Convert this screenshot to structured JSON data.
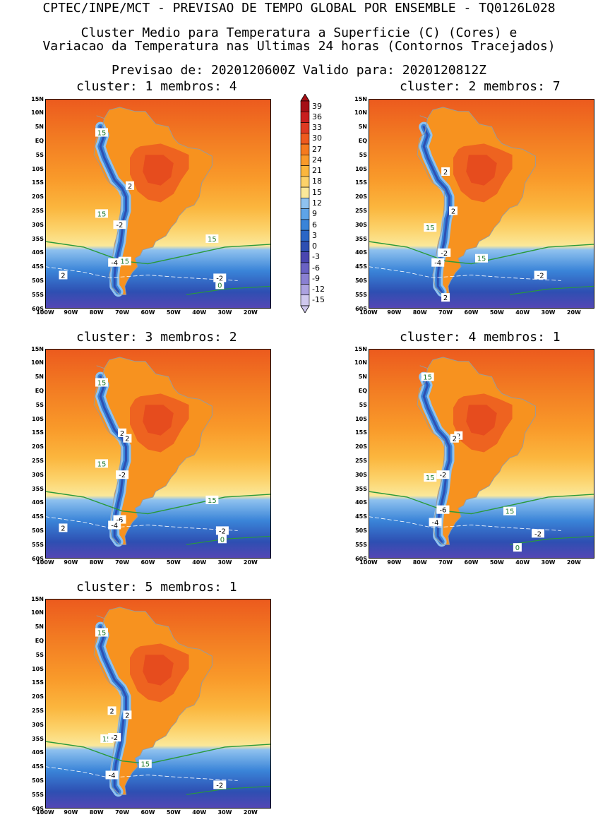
{
  "header": {
    "line1": "CPTEC/INPE/MCT - PREVISAO DE TEMPO GLOBAL POR ENSEMBLE - TQ0126L028",
    "line2": "Cluster Medio para Temperatura a Superficie (C) (Cores) e",
    "line3": "Variacao da Temperatura nas Ultimas 24 horas (Contornos Tracejados)",
    "line4": "Previsao de: 2020120600Z    Valido para: 2020120812Z"
  },
  "axes": {
    "lat_labels": [
      "15N",
      "10N",
      "5N",
      "EQ",
      "5S",
      "10S",
      "15S",
      "20S",
      "25S",
      "30S",
      "35S",
      "40S",
      "45S",
      "50S",
      "55S",
      "60S"
    ],
    "lon_labels": [
      "100W",
      "90W",
      "80W",
      "70W",
      "60W",
      "50W",
      "40W",
      "30W",
      "20W"
    ]
  },
  "colorbar": {
    "labels": [
      "39",
      "36",
      "33",
      "30",
      "27",
      "24",
      "21",
      "18",
      "15",
      "12",
      "9",
      "6",
      "3",
      "0",
      "-3",
      "-6",
      "-9",
      "-12",
      "-15"
    ],
    "colors": [
      "#a50f15",
      "#c81e1e",
      "#de3a22",
      "#ee5a1e",
      "#f57a1e",
      "#f99a2a",
      "#fbb63e",
      "#fcd26a",
      "#fbe89a",
      "#8fc2ef",
      "#5ea4e8",
      "#3a84d8",
      "#2a66c6",
      "#2e4fb2",
      "#4a46b0",
      "#6a62c4",
      "#8a80d2",
      "#aca2e0",
      "#cfc8ee"
    ]
  },
  "clusters": [
    {
      "title": "cluster: 1   membros: 4",
      "cluster": 1,
      "membros": 4,
      "contour_labels": [
        "15",
        "15",
        "15",
        "15",
        "2",
        "-2",
        "-4",
        "2",
        "-2",
        "0"
      ]
    },
    {
      "title": "cluster: 2   membros: 7",
      "cluster": 2,
      "membros": 7,
      "contour_labels": [
        "2",
        "2",
        "15",
        "-2",
        "15",
        "-4",
        "-2",
        "2"
      ]
    },
    {
      "title": "cluster: 3   membros: 2",
      "cluster": 3,
      "membros": 2,
      "contour_labels": [
        "15",
        "2",
        "2",
        "15",
        "-2",
        "15",
        "-6",
        "-4",
        "2",
        "-2",
        "0"
      ]
    },
    {
      "title": "cluster: 4   membros: 1",
      "cluster": 4,
      "membros": 1,
      "contour_labels": [
        "15",
        "2",
        "2",
        "15",
        "-2",
        "-6",
        "15",
        "-4",
        "-2",
        "0"
      ]
    },
    {
      "title": "cluster: 5   membros: 1",
      "cluster": 5,
      "membros": 1,
      "contour_labels": [
        "15",
        "2",
        "2",
        "15",
        "-2",
        "15",
        "-4",
        "-2"
      ]
    }
  ]
}
